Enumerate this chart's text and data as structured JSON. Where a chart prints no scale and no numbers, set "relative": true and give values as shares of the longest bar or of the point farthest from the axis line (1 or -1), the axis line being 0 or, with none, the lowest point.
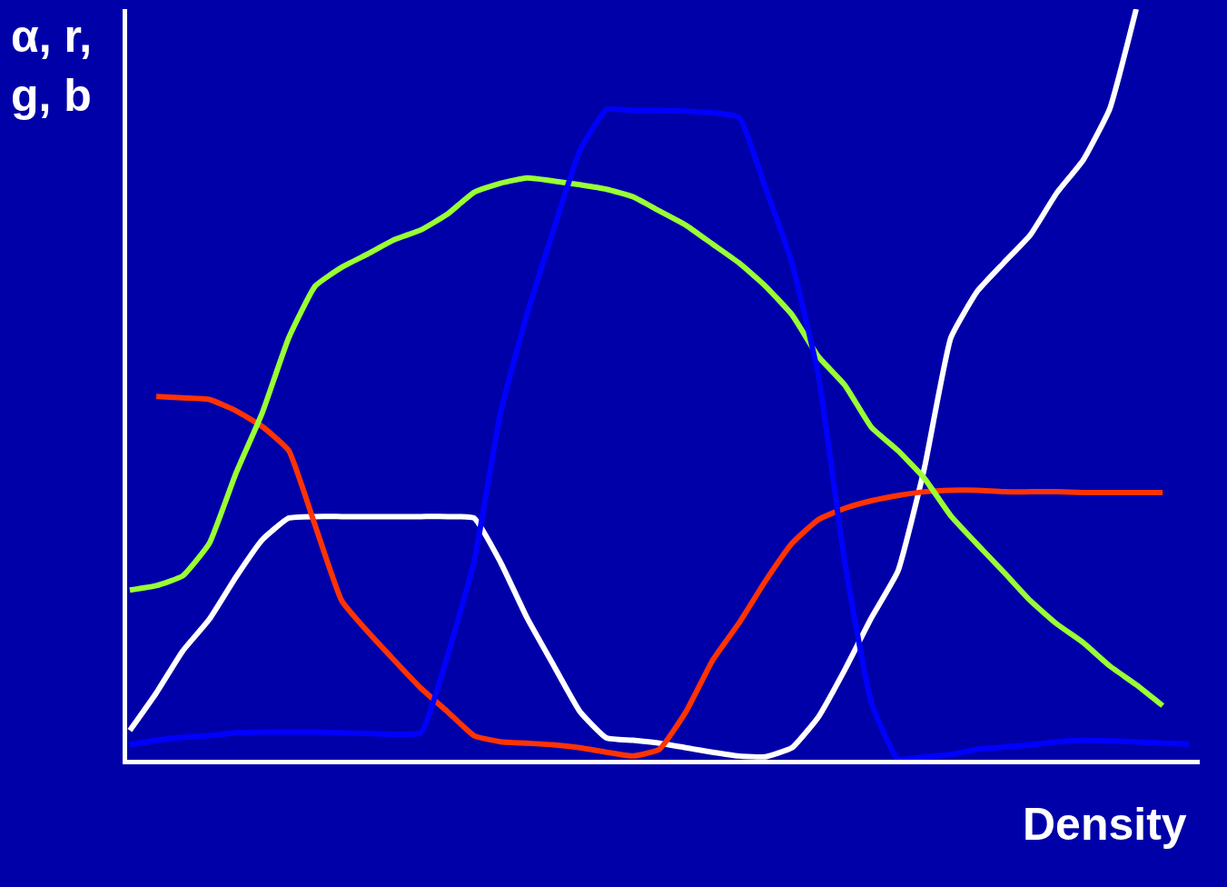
{
  "chart_data": {
    "type": "line",
    "relative": true,
    "xlabel": "Density",
    "ylabel": "α, r,\ng, b",
    "categories": [
      null,
      null,
      null,
      null,
      null,
      null,
      null,
      null,
      null,
      null,
      null,
      null,
      null,
      null,
      null,
      null,
      null,
      null,
      null,
      null,
      null,
      null,
      null,
      null,
      null,
      null,
      null,
      null,
      null,
      null,
      null,
      null,
      null,
      null,
      null,
      null,
      null,
      null,
      null,
      null,
      null
    ],
    "series": [
      {
        "color": "#ffffff",
        "values": [
          0.039,
          0.089,
          0.145,
          0.187,
          0.243,
          0.293,
          0.322,
          0.324,
          0.324,
          0.324,
          0.324,
          0.324,
          0.324,
          0.322,
          0.263,
          0.189,
          0.126,
          0.064,
          0.029,
          0.026,
          0.022,
          0.016,
          0.01,
          0.005,
          0.004,
          0.016,
          0.057,
          0.12,
          0.189,
          0.251,
          0.388,
          0.562,
          0.624,
          0.662,
          0.699,
          0.755,
          0.799,
          0.867,
          1.0,
          null,
          null
        ]
      },
      {
        "color": "#ff3300",
        "values": [
          null,
          0.484,
          0.482,
          0.48,
          0.465,
          0.444,
          0.412,
          0.312,
          0.212,
          0.17,
          0.132,
          0.095,
          0.064,
          0.032,
          0.024,
          0.022,
          0.02,
          0.016,
          0.01,
          0.005,
          0.014,
          0.064,
          0.132,
          0.182,
          0.238,
          0.288,
          0.32,
          0.335,
          0.345,
          0.352,
          0.357,
          0.359,
          0.359,
          0.357,
          0.357,
          0.357,
          0.356,
          0.356,
          0.356,
          0.356,
          null
        ]
      },
      {
        "color": "#99ff33",
        "values": [
          0.226,
          0.232,
          0.245,
          0.288,
          0.381,
          0.462,
          0.562,
          0.631,
          0.656,
          0.674,
          0.693,
          0.706,
          0.727,
          0.756,
          0.768,
          0.775,
          0.771,
          0.766,
          0.76,
          0.75,
          0.731,
          0.712,
          0.687,
          0.662,
          0.631,
          0.593,
          0.537,
          0.499,
          0.443,
          0.412,
          0.375,
          0.325,
          0.287,
          0.25,
          0.212,
          0.181,
          0.156,
          0.125,
          0.1,
          0.072,
          null
        ]
      },
      {
        "color": "#0000ff",
        "values": [
          0.02,
          0.026,
          0.03,
          0.032,
          0.036,
          0.037,
          0.037,
          0.037,
          0.036,
          0.035,
          0.034,
          0.036,
          0.139,
          0.264,
          0.463,
          0.594,
          0.706,
          0.812,
          0.866,
          0.865,
          0.865,
          0.864,
          0.862,
          0.856,
          0.762,
          0.662,
          0.512,
          0.262,
          0.076,
          0.001,
          0.004,
          0.007,
          0.014,
          0.017,
          0.02,
          0.024,
          0.026,
          0.025,
          0.024,
          0.022,
          0.021
        ]
      }
    ]
  }
}
